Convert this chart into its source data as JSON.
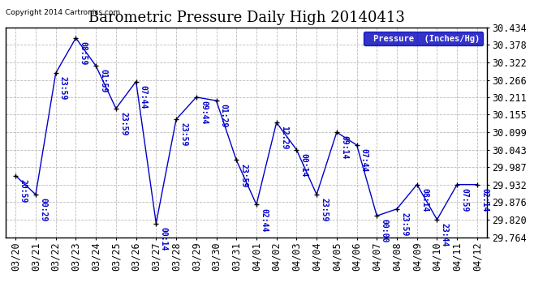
{
  "title": "Barometric Pressure Daily High 20140413",
  "copyright": "Copyright 2014 Cartronics.com",
  "background_color": "#ffffff",
  "plot_bg_color": "#ffffff",
  "line_color": "#0000cc",
  "marker_color": "#000000",
  "legend_bg": "#0000bb",
  "legend_text": "Pressure  (Inches/Hg)",
  "ylim": [
    29.764,
    30.434
  ],
  "yticks": [
    29.764,
    29.82,
    29.876,
    29.932,
    29.987,
    30.043,
    30.099,
    30.155,
    30.211,
    30.266,
    30.322,
    30.378,
    30.434
  ],
  "dates": [
    "03/20",
    "03/21",
    "03/22",
    "03/23",
    "03/24",
    "03/25",
    "03/26",
    "03/27",
    "03/28",
    "03/29",
    "03/30",
    "03/31",
    "04/01",
    "04/02",
    "04/03",
    "04/04",
    "04/05",
    "04/06",
    "04/07",
    "04/08",
    "04/09",
    "04/10",
    "04/11",
    "04/12"
  ],
  "values": [
    29.96,
    29.9,
    30.288,
    30.4,
    30.311,
    30.175,
    30.261,
    29.808,
    30.14,
    30.211,
    30.2,
    30.01,
    29.868,
    30.13,
    30.043,
    29.9,
    30.099,
    30.058,
    29.832,
    29.854,
    29.932,
    29.82,
    29.932,
    29.932
  ],
  "annotations": [
    "20:59",
    "00:29",
    "23:59",
    "08:59",
    "01:59",
    "23:59",
    "07:44",
    "00:14",
    "23:59",
    "09:44",
    "01:29",
    "23:59",
    "02:44",
    "12:29",
    "00:14",
    "23:59",
    "09:14",
    "07:44",
    "00:00",
    "23:59",
    "08:14",
    "23:44",
    "07:59",
    "02:14"
  ],
  "title_fontsize": 13,
  "tick_fontsize": 8.5,
  "annotation_fontsize": 7,
  "grid_color": "#bbbbbb",
  "grid_style": "--"
}
